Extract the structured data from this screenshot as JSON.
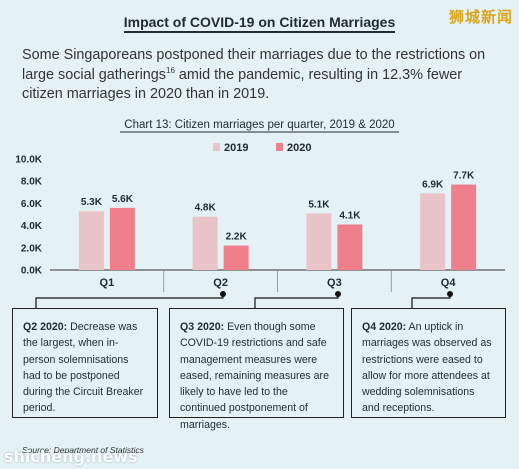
{
  "watermarks": {
    "top": "狮城新闻",
    "bottom": "shicheng.news"
  },
  "heading": "Impact of COVID-19 on Citizen Marriages",
  "intro": {
    "before": "Some Singaporeans postponed their marriages due to the restrictions on large social gatherings",
    "footnote": "16",
    "after": " amid the pandemic, resulting in 12.3% fewer citizen marriages in 2020 than in 2019."
  },
  "chart_data": {
    "type": "bar",
    "title": "Chart 13: Citizen marriages per quarter, 2019 & 2020",
    "categories": [
      "Q1",
      "Q2",
      "Q3",
      "Q4"
    ],
    "series": [
      {
        "name": "2019",
        "values": [
          5.3,
          4.8,
          5.1,
          6.9
        ],
        "labels": [
          "5.3K",
          "4.8K",
          "5.1K",
          "6.9K"
        ],
        "color": "#e8c4c8"
      },
      {
        "name": "2020",
        "values": [
          5.6,
          2.2,
          4.1,
          7.7
        ],
        "labels": [
          "5.6K",
          "2.2K",
          "4.1K",
          "7.7K"
        ],
        "color": "#f07f8c"
      }
    ],
    "yticks": [
      "0.0K",
      "2.0K",
      "4.0K",
      "6.0K",
      "8.0K",
      "10.0K"
    ],
    "ylim": [
      0,
      10
    ],
    "grid": false,
    "legend_position": "top"
  },
  "panels": [
    {
      "label": "Q2 2020:",
      "text": " Decrease was the largest, when in-person solemnisations had to be postponed during the Circuit Breaker period."
    },
    {
      "label": "Q3 2020:",
      "text": " Even though some COVID-19 restrictions and safe management measures were eased, remaining measures are likely to have led to the continued postponement of marriages."
    },
    {
      "label": "Q4 2020:",
      "text": " An uptick in marriages was observed as restrictions were eased to allow for more attendees at wedding solemnisations and receptions."
    }
  ],
  "source": "Source: Department of Statistics"
}
